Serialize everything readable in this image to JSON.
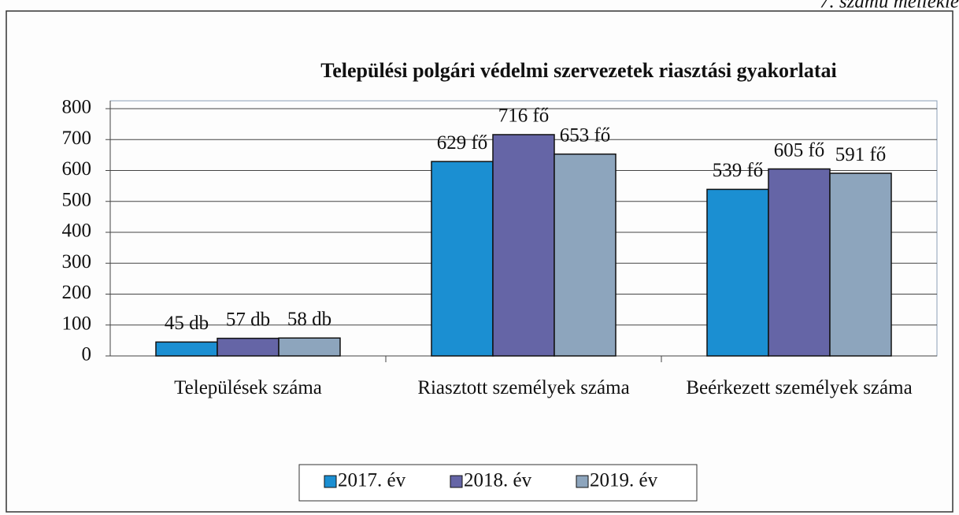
{
  "header": "7. számú mellékle",
  "chart_data": {
    "type": "bar",
    "title": "Települési polgári védelmi szervezetek riasztási gyakorlatai",
    "categories": [
      "Települések száma",
      "Riasztott személyek száma",
      "Beérkezett személyek száma"
    ],
    "series": [
      {
        "name": "2017. év",
        "color": "#1b8fd2",
        "values": [
          45,
          629,
          539
        ],
        "value_labels": [
          "45 db",
          "629 fő",
          "539 fő"
        ]
      },
      {
        "name": "2018. év",
        "color": "#6565a6",
        "values": [
          57,
          716,
          605
        ],
        "value_labels": [
          "57 db",
          "716 fő",
          "605 fő"
        ]
      },
      {
        "name": "2019. év",
        "color": "#8da5bd",
        "values": [
          58,
          653,
          591
        ],
        "value_labels": [
          "58 db",
          "653 fő",
          "591 fő"
        ]
      }
    ],
    "ylim": [
      0,
      800
    ],
    "yticks": [
      0,
      100,
      200,
      300,
      400,
      500,
      600,
      700,
      800
    ],
    "grid": true,
    "legend": "bottom"
  }
}
